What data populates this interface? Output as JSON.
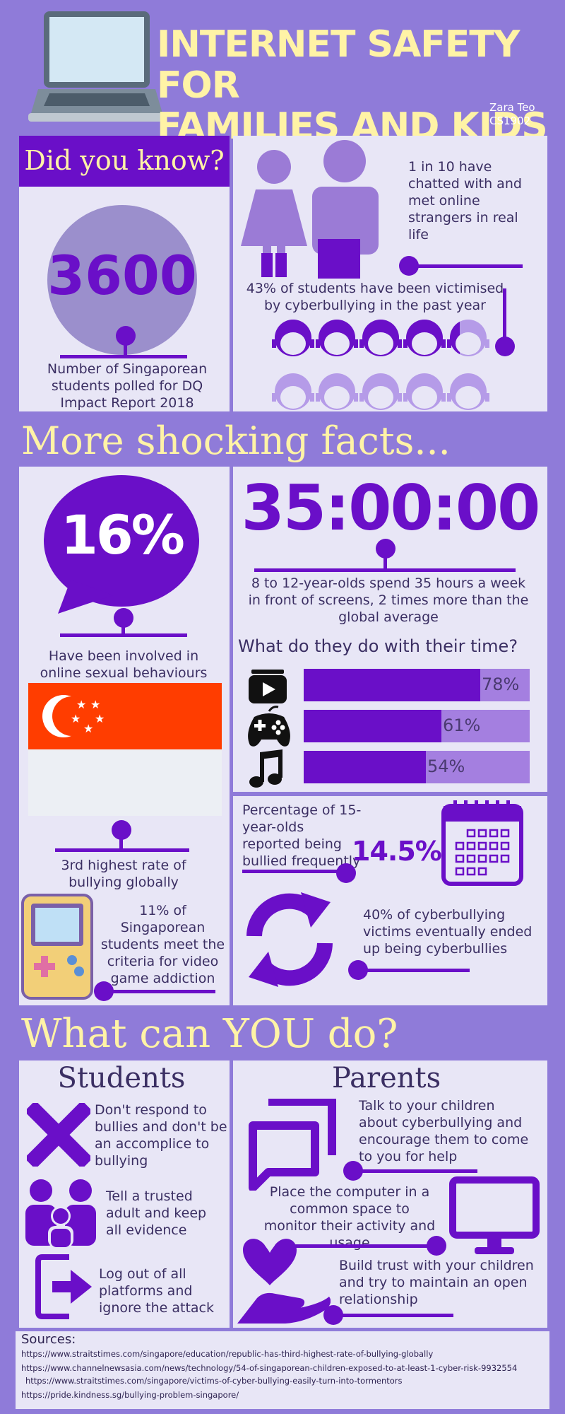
{
  "header": {
    "title_line1": "INTERNET SAFETY FOR",
    "title_line2": "FAMILIES AND KIDS",
    "author": "Zara Teo",
    "course": "CS1902"
  },
  "did_you_know": {
    "heading": "Did you know?",
    "big_number": "3600",
    "caption": "Number of Singaporean students polled for DQ Impact Report 2018",
    "fact1": "1 in 10 have chatted with and met online strangers in real life",
    "fact2": "43% of students have been victimised by cyberbullying in the past year",
    "faces_fraction": 0.43
  },
  "more_facts": {
    "heading": "More shocking facts...",
    "percent_16": "16%",
    "caption_16": "Have been involved in online sexual behaviours",
    "time_display": "35:00:00",
    "time_caption": "8 to 12-year-olds spend 35 hours a week in front of screens, 2 times more than the global average",
    "activities_heading": "What do they do with their time?",
    "activities": [
      {
        "icon": "video-play-icon",
        "label": "78%",
        "value": 0.78
      },
      {
        "icon": "gamepad-icon",
        "label": "61%",
        "value": 0.61
      },
      {
        "icon": "music-note-icon",
        "label": "54%",
        "value": 0.54
      }
    ],
    "bullying_rank": "3rd highest rate of bullying globally",
    "bullied_caption": "Percentage of 15-year-olds reported being bullied frequently",
    "bullied_percent": "14.5%",
    "game_addiction": "11% of Singaporean students meet the criteria for video game addiction",
    "cycle_fact": "40% of cyberbullying victims eventually ended up being cyberbullies"
  },
  "what_can_you_do": {
    "heading": "What can YOU do?",
    "students_heading": "Students",
    "parents_heading": "Parents",
    "students_tips": [
      "Don't respond to bullies and don't be an accomplice to bullying",
      "Tell a trusted adult and keep all evidence",
      "Log out of all platforms and ignore the attack"
    ],
    "parents_tips": [
      "Talk to your children about cyberbullying and encourage them to come to you for help",
      "Place the computer in a common space to monitor their activity and usage",
      "Build trust with your children and try to maintain an open relationship"
    ]
  },
  "sources": {
    "heading": "Sources:",
    "links": [
      "https://www.straitstimes.com/singapore/education/republic-has-third-highest-rate-of-bullying-globally",
      "https://www.channelnewsasia.com/news/technology/54-of-singaporean-children-exposed-to-at-least-1-cyber-risk-9932554",
      "https://www.straitstimes.com/singapore/victims-of-cyber-bullying-easily-turn-into-tormentors",
      "https://pride.kindness.sg/bullying-problem-singapore/"
    ]
  },
  "colors": {
    "background": "#8f7bd9",
    "panel": "#e8e6f6",
    "accent": "#6a0fc8",
    "light_accent": "#a47fe0",
    "title_yellow": "#fff3a6",
    "flag_red": "#ff3d00"
  }
}
